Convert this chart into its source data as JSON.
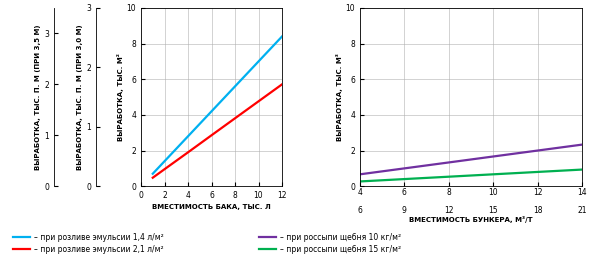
{
  "left_chart": {
    "x_blue": [
      1,
      2,
      4,
      6,
      8,
      10,
      12
    ],
    "x_red": [
      1,
      2,
      4,
      6,
      8,
      10,
      12
    ],
    "blue_y": [
      0.7,
      1.4,
      2.8,
      4.2,
      5.6,
      7.0,
      8.4
    ],
    "red_y": [
      0.476,
      0.952,
      1.9,
      2.857,
      3.81,
      4.762,
      5.714
    ],
    "blue_color": "#00b0f0",
    "red_color": "#ff0000",
    "xlabel": "ВМЕСТИМОСТЬ БАКА, ТЫС. Л",
    "ylabel_outer": "ВЫРАБОТКА, ТЫС. П. М (ПРИ 3,5 М)",
    "ylabel_inner": "ВЫРАБОТКА, ТЫС. П. М (ПРИ 3,0 М)",
    "ylabel_main": "ВЫРАБОТКА, ТЫС. М²",
    "xlim": [
      0,
      12
    ],
    "ylim_main": [
      0,
      10
    ],
    "ylim_outer": [
      0,
      3.5
    ],
    "ylim_inner": [
      0,
      3.0
    ],
    "xticks": [
      0,
      2,
      4,
      6,
      8,
      10,
      12
    ],
    "yticks_main": [
      0,
      2,
      4,
      6,
      8,
      10
    ],
    "yticks_outer": [
      0,
      1,
      2,
      3
    ],
    "yticks_inner": [
      0,
      1,
      2,
      3
    ]
  },
  "right_chart": {
    "x": [
      4,
      6,
      8,
      10,
      12,
      14
    ],
    "xticks_top": [
      4,
      6,
      8,
      10,
      12,
      14
    ],
    "xticks_bottom": [
      6,
      9,
      12,
      15,
      18,
      21
    ],
    "purple_y": [
      0.667,
      1.0,
      1.333,
      1.667,
      2.0,
      2.333
    ],
    "green_y": [
      0.267,
      0.4,
      0.533,
      0.667,
      0.8,
      0.933
    ],
    "purple_color": "#7030a0",
    "green_color": "#00b050",
    "xlabel": "ВМЕСТИМОСТЬ БУНКЕРА, М³/Т",
    "ylabel": "ВЫРАБОТКА, ТЫС. М³",
    "xlim": [
      4,
      14
    ],
    "ylim": [
      0,
      10
    ],
    "yticks": [
      0,
      2,
      4,
      6,
      8,
      10
    ]
  },
  "legend": {
    "blue_label": "– при розливе эмульсии 1,4 л/м²",
    "red_label": "– при розливе эмульсии 2,1 л/м²",
    "purple_label": "– при россыпи щебня 10 кг/м²",
    "green_label": "– при россыпи щебня 15 кг/м²"
  },
  "background_color": "#ffffff",
  "grid_color": "#b0b0b0",
  "tick_fontsize": 5.5,
  "label_fontsize": 5.0,
  "legend_fontsize": 5.5,
  "line_width": 1.6
}
